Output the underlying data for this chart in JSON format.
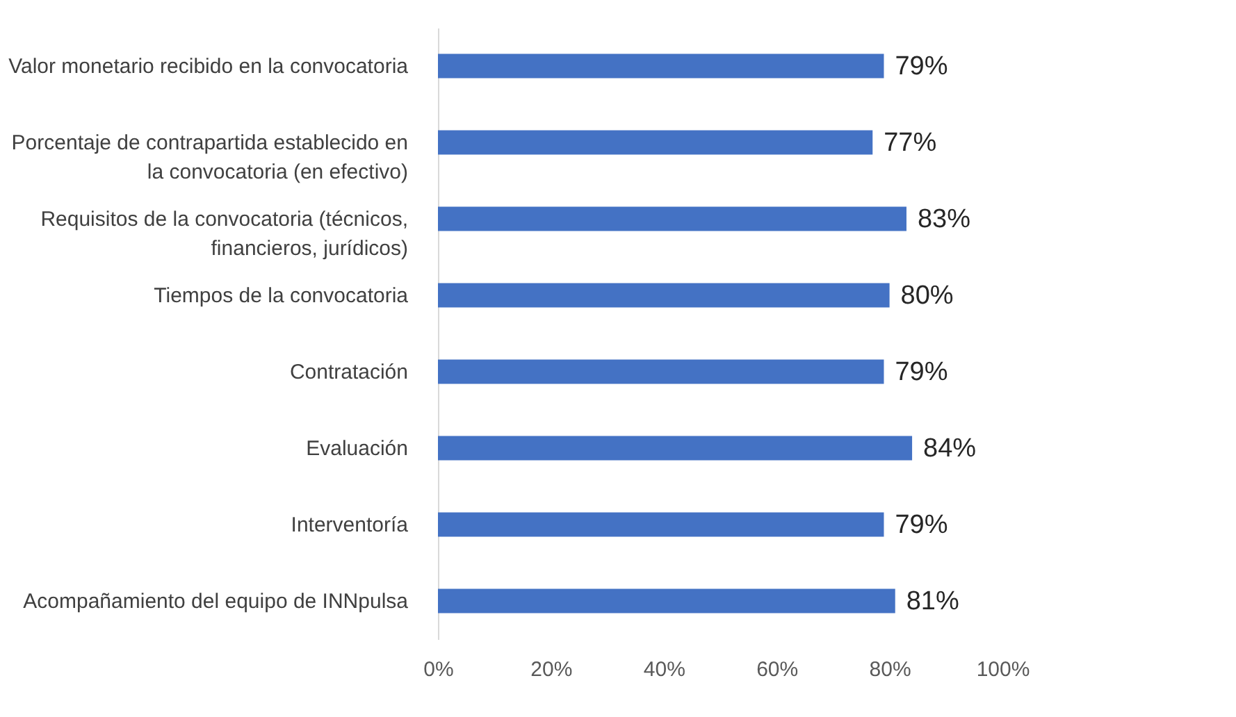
{
  "chart_data": {
    "type": "bar",
    "orientation": "horizontal",
    "categories": [
      "Valor monetario recibido en la convocatoria",
      "Porcentaje de contrapartida establecido en la convocatoria (en efectivo)",
      "Requisitos de la convocatoria (técnicos, financieros, jurídicos)",
      "Tiempos de la convocatoria",
      "Contratación",
      "Evaluación",
      "Interventoría",
      "Acompañamiento del equipo de INNpulsa"
    ],
    "values": [
      79,
      77,
      83,
      80,
      79,
      84,
      79,
      81
    ],
    "value_labels": [
      "79%",
      "77%",
      "83%",
      "80%",
      "79%",
      "84%",
      "79%",
      "81%"
    ],
    "color": "#4472c4",
    "xlim": [
      0,
      100
    ],
    "xticks": [
      {
        "value": 0,
        "label": "0%"
      },
      {
        "value": 20,
        "label": "20%"
      },
      {
        "value": 40,
        "label": "40%"
      },
      {
        "value": 60,
        "label": "60%"
      },
      {
        "value": 80,
        "label": "80%"
      },
      {
        "value": 100,
        "label": "100%"
      }
    ],
    "grid": false
  }
}
